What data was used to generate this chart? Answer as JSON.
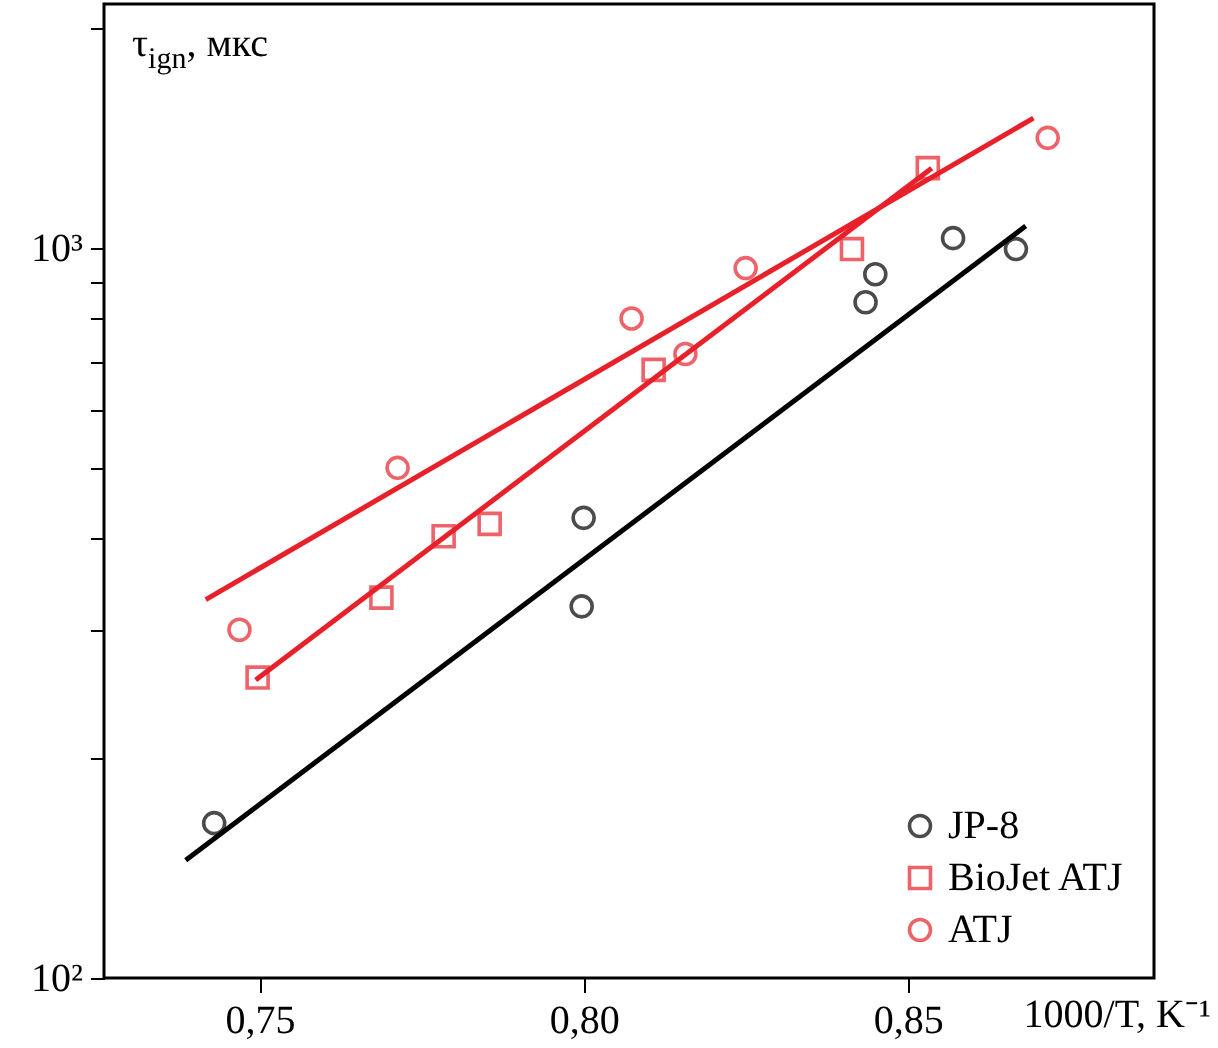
{
  "chart_data": {
    "type": "scatter",
    "xlabel": "1000/T, K⁻¹",
    "ylabel": "τ$_{ign}$, мкс",
    "xlim": [
      0.726,
      0.888
    ],
    "xticks": [
      {
        "value": 0.75,
        "label": "0,75"
      },
      {
        "value": 0.8,
        "label": "0,80"
      },
      {
        "value": 0.85,
        "label": "0,85"
      }
    ],
    "ylim": [
      100,
      2160
    ],
    "yticks": [
      {
        "value": 100,
        "label": "10²"
      },
      {
        "value": 200,
        "label": null
      },
      {
        "value": 300,
        "label": null
      },
      {
        "value": 400,
        "label": null
      },
      {
        "value": 500,
        "label": null
      },
      {
        "value": 600,
        "label": null
      },
      {
        "value": 700,
        "label": null
      },
      {
        "value": 800,
        "label": null
      },
      {
        "value": 900,
        "label": null
      },
      {
        "value": 1000,
        "label": "10³"
      },
      {
        "value": 2000,
        "label": null
      }
    ],
    "log": "y",
    "grid": false,
    "legend": "bottom right",
    "series": [
      {
        "name": "JP-8",
        "type": "scatter",
        "marker": "circle",
        "color": "#000000",
        "x": [
          0.743,
          0.7997,
          0.8,
          0.8435,
          0.845,
          0.857,
          0.8667
        ],
        "values": [
          163,
          323,
          427,
          843,
          921,
          1032,
          997
        ]
      },
      {
        "name": "BioJet ATJ",
        "type": "scatter",
        "marker": "square",
        "color": "#e8202a",
        "x": [
          0.7497,
          0.7688,
          0.7784,
          0.7855,
          0.8108,
          0.8414,
          0.8531
        ],
        "values": [
          258,
          332,
          403,
          419,
          681,
          997,
          1287
        ]
      },
      {
        "name": "ATJ",
        "type": "scatter",
        "marker": "circle",
        "color": "#e8202a",
        "x": [
          0.7469,
          0.7713,
          0.8074,
          0.8157,
          0.825,
          0.8716
        ],
        "values": [
          300,
          500,
          801,
          716,
          939,
          1416
        ]
      },
      {
        "type": "line",
        "color": "#000000",
        "x": [
          0.7386,
          0.8682
        ],
        "values": [
          145,
          1072
        ]
      },
      {
        "type": "line",
        "color": "#e8202a",
        "x": [
          0.7494,
          0.8537
        ],
        "values": [
          256,
          1287
        ]
      },
      {
        "type": "line",
        "color": "#e8202a",
        "x": [
          0.7417,
          0.8694
        ],
        "values": [
          330,
          1507
        ]
      }
    ]
  }
}
